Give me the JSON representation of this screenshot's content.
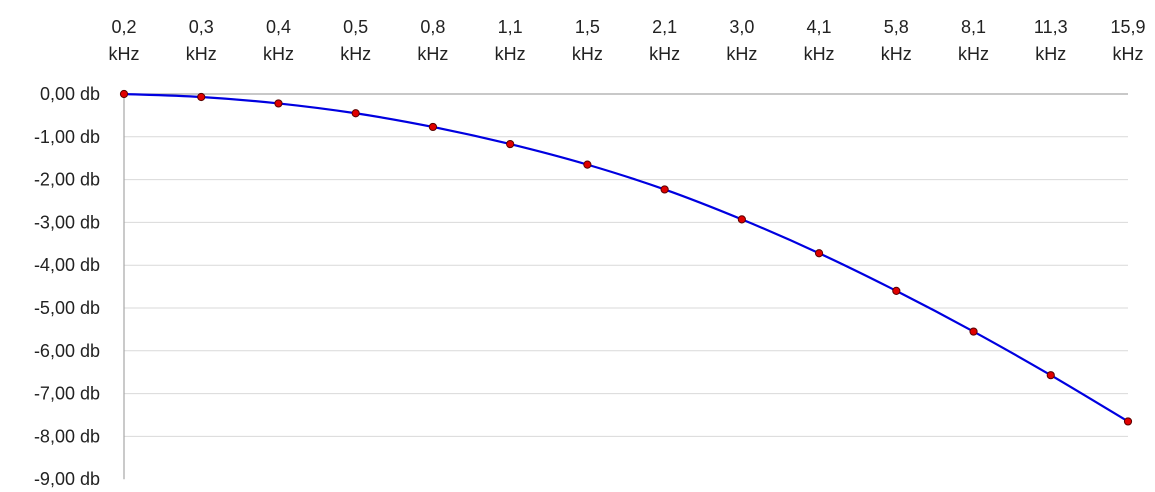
{
  "chart_data": {
    "type": "line",
    "categories": [
      [
        "0,2",
        "kHz"
      ],
      [
        "0,3",
        "kHz"
      ],
      [
        "0,4",
        "kHz"
      ],
      [
        "0,5",
        "kHz"
      ],
      [
        "0,8",
        "kHz"
      ],
      [
        "1,1",
        "kHz"
      ],
      [
        "1,5",
        "kHz"
      ],
      [
        "2,1",
        "kHz"
      ],
      [
        "3,0",
        "kHz"
      ],
      [
        "4,1",
        "kHz"
      ],
      [
        "5,8",
        "kHz"
      ],
      [
        "8,1",
        "kHz"
      ],
      [
        "11,3",
        "kHz"
      ],
      [
        "15,9",
        "kHz"
      ]
    ],
    "series": [
      {
        "values": [
          0.0,
          -0.07,
          -0.22,
          -0.45,
          -0.77,
          -1.17,
          -1.65,
          -2.23,
          -2.93,
          -3.72,
          -4.6,
          -5.55,
          -6.57,
          -7.65
        ]
      }
    ],
    "y_ticks": [
      "0,00 db",
      "-1,00 db",
      "-2,00 db",
      "-3,00 db",
      "-4,00 db",
      "-5,00 db",
      "-6,00 db",
      "-7,00 db",
      "-8,00 db",
      "-9,00 db"
    ],
    "ylim": [
      -9,
      0
    ],
    "x_axis_position": "top",
    "grid": true,
    "line_color": "#0000e0",
    "marker_color": "#e00000"
  }
}
